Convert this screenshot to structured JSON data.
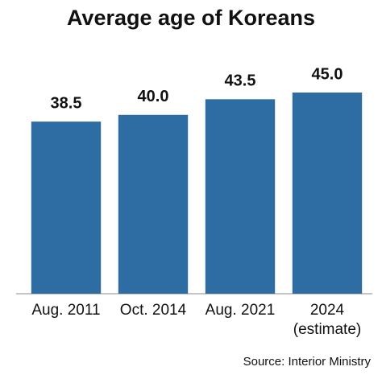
{
  "chart_data": {
    "type": "bar",
    "title": "Average age of Koreans",
    "categories": [
      "Aug. 2011",
      "Oct. 2014",
      "Aug. 2021",
      "2024\n(estimate)"
    ],
    "values": [
      38.5,
      40,
      43.5,
      45
    ],
    "value_labels": [
      "38.5",
      "40.0",
      "43.5",
      "45.0"
    ],
    "color": "#2e6da4",
    "ylim": [
      0,
      45
    ],
    "source": "Source: Interior Ministry"
  }
}
